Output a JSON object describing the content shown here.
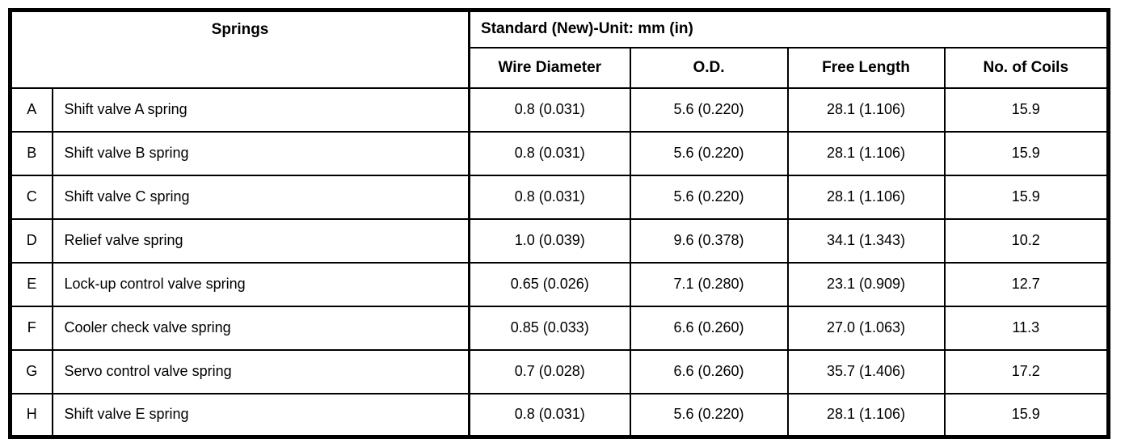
{
  "table": {
    "springs_header": "Springs",
    "standard_header": "Standard (New)-Unit: mm (in)",
    "columns": [
      "Wire Diameter",
      "O.D.",
      "Free Length",
      "No. of Coils"
    ],
    "rows": [
      {
        "id": "A",
        "name": "Shift valve A spring",
        "wire_diameter": "0.8 (0.031)",
        "od": "5.6 (0.220)",
        "free_length": "28.1 (1.106)",
        "coils": "15.9"
      },
      {
        "id": "B",
        "name": "Shift valve B spring",
        "wire_diameter": "0.8 (0.031)",
        "od": "5.6 (0.220)",
        "free_length": "28.1 (1.106)",
        "coils": "15.9"
      },
      {
        "id": "C",
        "name": "Shift valve C spring",
        "wire_diameter": "0.8 (0.031)",
        "od": "5.6 (0.220)",
        "free_length": "28.1 (1.106)",
        "coils": "15.9"
      },
      {
        "id": "D",
        "name": "Relief valve spring",
        "wire_diameter": "1.0 (0.039)",
        "od": "9.6 (0.378)",
        "free_length": "34.1 (1.343)",
        "coils": "10.2"
      },
      {
        "id": "E",
        "name": "Lock-up control valve spring",
        "wire_diameter": "0.65 (0.026)",
        "od": "7.1 (0.280)",
        "free_length": "23.1 (0.909)",
        "coils": "12.7"
      },
      {
        "id": "F",
        "name": "Cooler check valve spring",
        "wire_diameter": "0.85 (0.033)",
        "od": "6.6 (0.260)",
        "free_length": "27.0 (1.063)",
        "coils": "11.3"
      },
      {
        "id": "G",
        "name": "Servo control valve spring",
        "wire_diameter": "0.7 (0.028)",
        "od": "6.6 (0.260)",
        "free_length": "35.7 (1.406)",
        "coils": "17.2"
      },
      {
        "id": "H",
        "name": "Shift valve E spring",
        "wire_diameter": "0.8 (0.031)",
        "od": "5.6 (0.220)",
        "free_length": "28.1 (1.106)",
        "coils": "15.9"
      }
    ]
  }
}
